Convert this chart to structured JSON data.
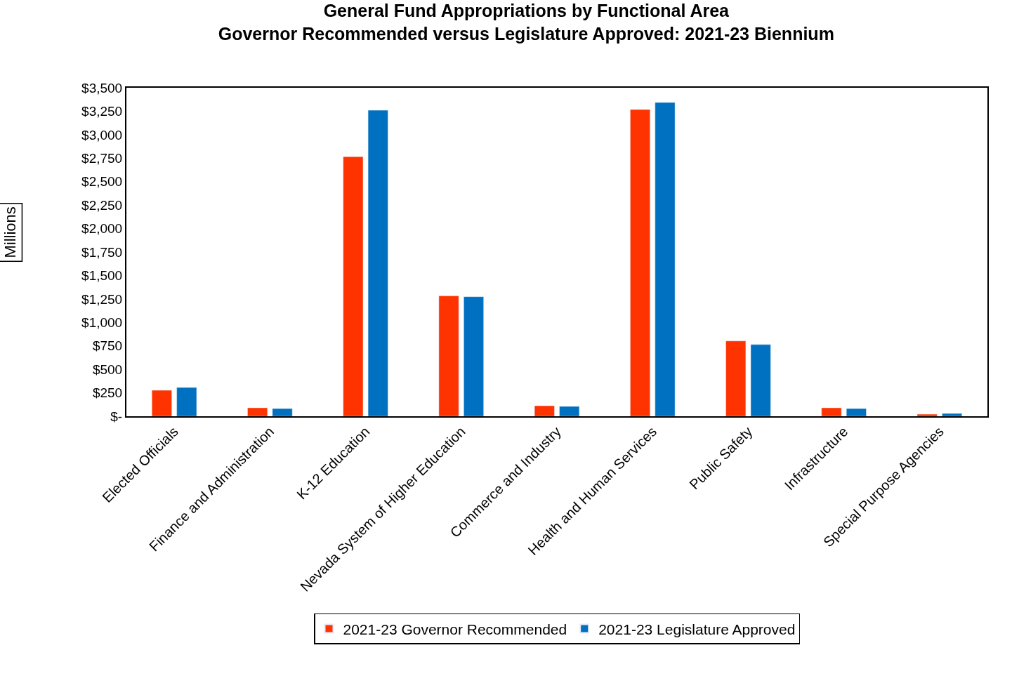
{
  "chart_data": {
    "type": "bar",
    "title": "General Fund Appropriations by Functional Area\nGovernor Recommended versus Legislature Approved: 2021-23 Biennium",
    "ylabel": "Millions",
    "categories": [
      "Elected Officials",
      "Finance and Administration",
      "K-12 Education",
      "Nevada System of Higher Education",
      "Commerce and Industry",
      "Health and Human Services",
      "Public Safety",
      "Infrastructure",
      "Special Purpose Agencies"
    ],
    "series": [
      {
        "name": "2021-23 Governor Recommended",
        "color": "#ff3300",
        "values": [
          277,
          90,
          2766,
          1282,
          112,
          3268,
          802,
          90,
          22
        ]
      },
      {
        "name": "2021-23 Legislature Approved",
        "color": "#0070c0",
        "values": [
          307,
          82,
          3260,
          1274,
          105,
          3343,
          764,
          82,
          30
        ]
      }
    ],
    "ylim": [
      0,
      3500
    ],
    "yticks": [
      {
        "value": 0,
        "label": "$-"
      },
      {
        "value": 250,
        "label": "$250"
      },
      {
        "value": 500,
        "label": "$500"
      },
      {
        "value": 750,
        "label": "$750"
      },
      {
        "value": 1000,
        "label": "$1,000"
      },
      {
        "value": 1250,
        "label": "$1,250"
      },
      {
        "value": 1500,
        "label": "$1,500"
      },
      {
        "value": 1750,
        "label": "$1,750"
      },
      {
        "value": 2000,
        "label": "$2,000"
      },
      {
        "value": 2250,
        "label": "$2,250"
      },
      {
        "value": 2500,
        "label": "$2,500"
      },
      {
        "value": 2750,
        "label": "$2,750"
      },
      {
        "value": 3000,
        "label": "$3,000"
      },
      {
        "value": 3250,
        "label": "$3,250"
      },
      {
        "value": 3500,
        "label": "$3,500"
      }
    ],
    "legend": "bottom"
  }
}
